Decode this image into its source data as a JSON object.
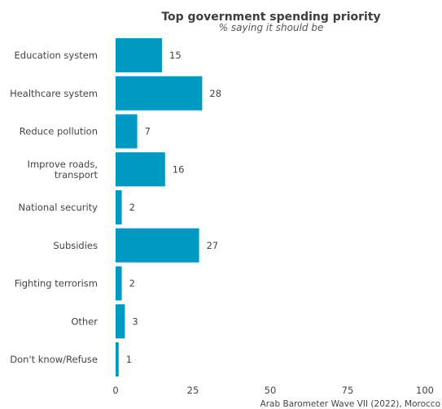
{
  "chart_data": {
    "type": "bar",
    "orientation": "horizontal",
    "title": "Top government spending priority",
    "subtitle": "% saying it should be",
    "categories": [
      [
        "Education system"
      ],
      [
        "Healthcare system"
      ],
      [
        "Reduce pollution"
      ],
      [
        "Improve roads,",
        "transport"
      ],
      [
        "National security"
      ],
      [
        "Subsidies"
      ],
      [
        "Fighting terrorism"
      ],
      [
        "Other"
      ],
      [
        "Don't know/Refuse"
      ]
    ],
    "values": [
      15,
      28,
      7,
      16,
      2,
      27,
      2,
      3,
      1
    ],
    "xlim": [
      0,
      100
    ],
    "xticks": [
      0,
      25,
      50,
      75,
      100
    ],
    "grid": false,
    "bar_color": "#0099c2",
    "source": "Arab Barometer Wave VII (2022), Morocco"
  }
}
